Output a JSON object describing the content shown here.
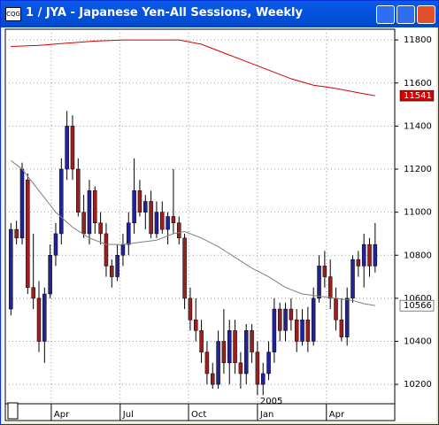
{
  "chart_data": {
    "type": "candlestick",
    "title": "1 / JYA - Japanese Yen-All Sessions, Weekly",
    "up_color": "#22229a",
    "down_color": "#9a1f1f",
    "ohlc": [
      [
        10550,
        10950,
        10520,
        10920
      ],
      [
        10920,
        10960,
        10850,
        10880
      ],
      [
        10880,
        11230,
        10850,
        11200
      ],
      [
        11150,
        11180,
        10620,
        10650
      ],
      [
        10650,
        10900,
        10550,
        10600
      ],
      [
        10600,
        10680,
        10350,
        10400
      ],
      [
        10400,
        10650,
        10300,
        10620
      ],
      [
        10620,
        10850,
        10600,
        10800
      ],
      [
        10800,
        10950,
        10750,
        10900
      ],
      [
        10900,
        11250,
        10850,
        11200
      ],
      [
        11200,
        11470,
        11150,
        11400
      ],
      [
        11400,
        11450,
        11150,
        11200
      ],
      [
        11200,
        11250,
        10980,
        11000
      ],
      [
        11000,
        11080,
        10880,
        10900
      ],
      [
        10900,
        11150,
        10850,
        11100
      ],
      [
        11100,
        11120,
        10900,
        10950
      ],
      [
        10950,
        11000,
        10850,
        10900
      ],
      [
        10900,
        10950,
        10700,
        10750
      ],
      [
        10750,
        10780,
        10650,
        10700
      ],
      [
        10700,
        10850,
        10680,
        10800
      ],
      [
        10800,
        10900,
        10750,
        10850
      ],
      [
        10850,
        11000,
        10800,
        10950
      ],
      [
        10950,
        11250,
        10900,
        11100
      ],
      [
        11100,
        11150,
        10980,
        11000
      ],
      [
        11000,
        11080,
        10920,
        11050
      ],
      [
        11050,
        11100,
        10880,
        10900
      ],
      [
        10900,
        11050,
        10880,
        11000
      ],
      [
        11000,
        11050,
        10900,
        10920
      ],
      [
        10920,
        11000,
        10850,
        10980
      ],
      [
        10980,
        11200,
        10900,
        10950
      ],
      [
        10950,
        10980,
        10850,
        10880
      ],
      [
        10880,
        10900,
        10550,
        10600
      ],
      [
        10600,
        10650,
        10450,
        10500
      ],
      [
        10500,
        10600,
        10400,
        10450
      ],
      [
        10450,
        10500,
        10300,
        10350
      ],
      [
        10350,
        10400,
        10200,
        10250
      ],
      [
        10250,
        10300,
        10180,
        10200
      ],
      [
        10200,
        10450,
        10180,
        10400
      ],
      [
        10400,
        10550,
        10250,
        10300
      ],
      [
        10300,
        10500,
        10200,
        10450
      ],
      [
        10450,
        10500,
        10250,
        10300
      ],
      [
        10300,
        10350,
        10180,
        10250
      ],
      [
        10250,
        10480,
        10200,
        10450
      ],
      [
        10450,
        10480,
        10300,
        10350
      ],
      [
        10350,
        10400,
        10150,
        10200
      ],
      [
        10200,
        10300,
        10150,
        10250
      ],
      [
        10250,
        10400,
        10220,
        10350
      ],
      [
        10350,
        10600,
        10300,
        10550
      ],
      [
        10550,
        10580,
        10400,
        10450
      ],
      [
        10450,
        10580,
        10400,
        10550
      ],
      [
        10550,
        10600,
        10450,
        10500
      ],
      [
        10500,
        10550,
        10350,
        10400
      ],
      [
        10400,
        10550,
        10380,
        10500
      ],
      [
        10500,
        10560,
        10350,
        10400
      ],
      [
        10400,
        10650,
        10380,
        10600
      ],
      [
        10600,
        10800,
        10580,
        10750
      ],
      [
        10750,
        10820,
        10650,
        10700
      ],
      [
        10700,
        10780,
        10550,
        10600
      ],
      [
        10600,
        10650,
        10450,
        10500
      ],
      [
        10500,
        10600,
        10400,
        10420
      ],
      [
        10420,
        10650,
        10380,
        10600
      ],
      [
        10600,
        10800,
        10580,
        10780
      ],
      [
        10780,
        10820,
        10700,
        10750
      ],
      [
        10750,
        10900,
        10650,
        10850
      ],
      [
        10850,
        10880,
        10700,
        10750
      ],
      [
        10750,
        10950,
        10720,
        10850
      ]
    ],
    "series": [
      {
        "color": "#d40000",
        "box_color": "#d40000",
        "label_color": "#ffffff",
        "x": [
          0,
          5,
          10,
          15,
          20,
          25,
          30,
          34,
          38,
          42,
          46,
          50,
          54,
          58,
          62,
          65
        ],
        "values": [
          11770,
          11775,
          11785,
          11795,
          11800,
          11800,
          11800,
          11780,
          11740,
          11700,
          11660,
          11620,
          11590,
          11575,
          11555,
          11541
        ]
      },
      {
        "color": "#808080",
        "box_color": "#ffffff",
        "label_color": "#000000",
        "x": [
          0,
          2,
          5,
          8,
          11,
          14,
          17,
          20,
          23,
          26,
          29,
          31,
          34,
          37,
          40,
          43,
          46,
          49,
          52,
          55,
          58,
          61,
          63,
          65
        ],
        "values": [
          11240,
          11200,
          11100,
          11000,
          10930,
          10880,
          10850,
          10850,
          10860,
          10870,
          10900,
          10910,
          10880,
          10840,
          10790,
          10740,
          10700,
          10650,
          10620,
          10610,
          10600,
          10590,
          10575,
          10566
        ]
      }
    ],
    "xlim": [
      -1,
      68.5
    ],
    "xticks": [
      {
        "value": 7.2,
        "label": "Apr"
      },
      {
        "value": 19.5,
        "label": "Jul"
      },
      {
        "value": 31.7,
        "label": "Oct"
      },
      {
        "value": 44.0,
        "label": "Jan"
      },
      {
        "value": 56.3,
        "label": "Apr"
      }
    ],
    "annotations": [
      {
        "text": "2005",
        "x": 44.0
      }
    ],
    "ylim": [
      10110,
      11850
    ],
    "yticks": [
      10200,
      10400,
      10600,
      10800,
      11000,
      11200,
      11400,
      11600,
      11800
    ],
    "grid": true
  }
}
